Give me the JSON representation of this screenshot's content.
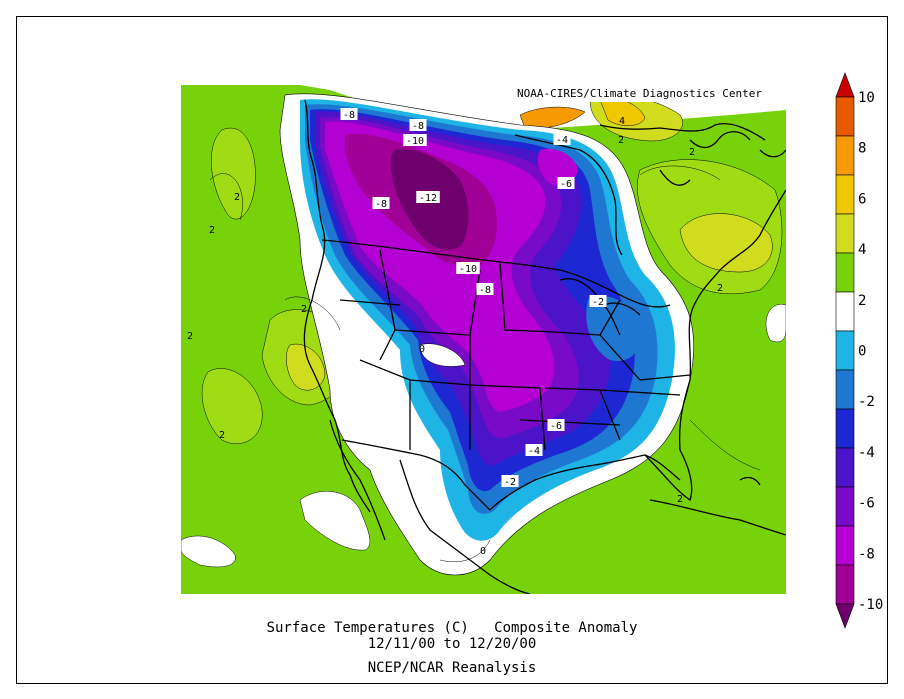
{
  "credit": "NOAA-CIRES/Climate Diagnostics Center",
  "title": {
    "variable": "Surface Temperatures (C)",
    "type": "Composite Anomaly",
    "dates": "12/11/00  to 12/20/00",
    "source": "NCEP/NCAR Reanalysis"
  },
  "colorbar": {
    "ticks": [
      "10",
      "8",
      "6",
      "4",
      "2",
      "0",
      "-2",
      "-4",
      "-6",
      "-8",
      "-10"
    ],
    "colors": [
      "#c80000",
      "#e65a00",
      "#f59a00",
      "#f0c800",
      "#d2dc1e",
      "#78d20a",
      "#ffffff",
      "#1eb4e6",
      "#1e78d2",
      "#1e28d2",
      "#4b14c8",
      "#780ac8",
      "#b400d2",
      "#a00096",
      "#6e006e"
    ]
  },
  "contour_labels": [
    {
      "id": "c-8a",
      "text": "-8"
    },
    {
      "id": "c-8b",
      "text": "-8"
    },
    {
      "id": "c-10a",
      "text": "-10"
    },
    {
      "id": "c-12",
      "text": "-12"
    },
    {
      "id": "c-8c",
      "text": "-8"
    },
    {
      "id": "c-4a",
      "text": "-4"
    },
    {
      "id": "c-6a",
      "text": "-6"
    },
    {
      "id": "c-10b",
      "text": "-10"
    },
    {
      "id": "c-8d",
      "text": "-8"
    },
    {
      "id": "c-2a",
      "text": "-2"
    },
    {
      "id": "c-6b",
      "text": "-6"
    },
    {
      "id": "c-4b",
      "text": "-4"
    },
    {
      "id": "c-2b",
      "text": "-2"
    },
    {
      "id": "c4",
      "text": "4"
    },
    {
      "id": "c2a",
      "text": "2"
    },
    {
      "id": "c2b",
      "text": "2"
    },
    {
      "id": "c2c",
      "text": "2"
    },
    {
      "id": "c2d",
      "text": "2"
    },
    {
      "id": "c2e",
      "text": "2"
    },
    {
      "id": "c2f",
      "text": "2"
    },
    {
      "id": "c2g",
      "text": "2"
    },
    {
      "id": "c2h",
      "text": "2"
    },
    {
      "id": "c2i",
      "text": "2"
    },
    {
      "id": "c0a",
      "text": "0"
    },
    {
      "id": "c0b",
      "text": "0"
    }
  ]
}
